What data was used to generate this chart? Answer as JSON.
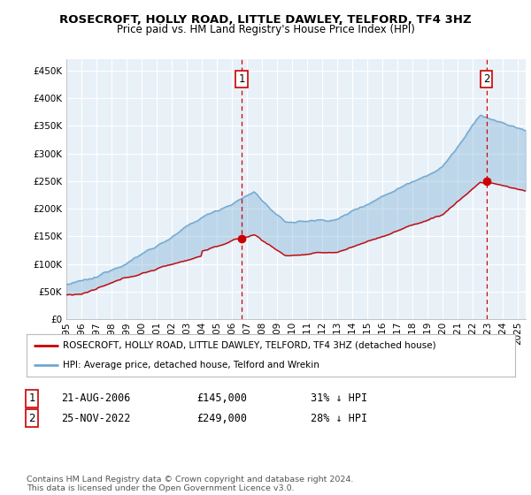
{
  "title": "ROSECROFT, HOLLY ROAD, LITTLE DAWLEY, TELFORD, TF4 3HZ",
  "subtitle": "Price paid vs. HM Land Registry's House Price Index (HPI)",
  "ylabel_ticks": [
    "£0",
    "£50K",
    "£100K",
    "£150K",
    "£200K",
    "£250K",
    "£300K",
    "£350K",
    "£400K",
    "£450K"
  ],
  "ytick_values": [
    0,
    50000,
    100000,
    150000,
    200000,
    250000,
    300000,
    350000,
    400000,
    450000
  ],
  "ylim": [
    0,
    470000
  ],
  "xlim_start": 1995.0,
  "xlim_end": 2025.5,
  "sale1_date": 2006.64,
  "sale1_price": 145000,
  "sale1_label": "1",
  "sale2_date": 2022.9,
  "sale2_price": 249000,
  "sale2_label": "2",
  "vline_color": "#cc0000",
  "hpi_color": "#6fa8d0",
  "hpi_fill_color": "#ddeeff",
  "sold_color": "#cc0000",
  "background_color": "#ffffff",
  "grid_color": "#cccccc",
  "legend_house": "ROSECROFT, HOLLY ROAD, LITTLE DAWLEY, TELFORD, TF4 3HZ (detached house)",
  "legend_hpi": "HPI: Average price, detached house, Telford and Wrekin",
  "table_row1": [
    "1",
    "21-AUG-2006",
    "£145,000",
    "31% ↓ HPI"
  ],
  "table_row2": [
    "2",
    "25-NOV-2022",
    "£249,000",
    "28% ↓ HPI"
  ],
  "footer": "Contains HM Land Registry data © Crown copyright and database right 2024.\nThis data is licensed under the Open Government Licence v3.0.",
  "title_fontsize": 9.5,
  "subtitle_fontsize": 8.5,
  "tick_fontsize": 7.5,
  "legend_fontsize": 8,
  "table_fontsize": 8.5
}
